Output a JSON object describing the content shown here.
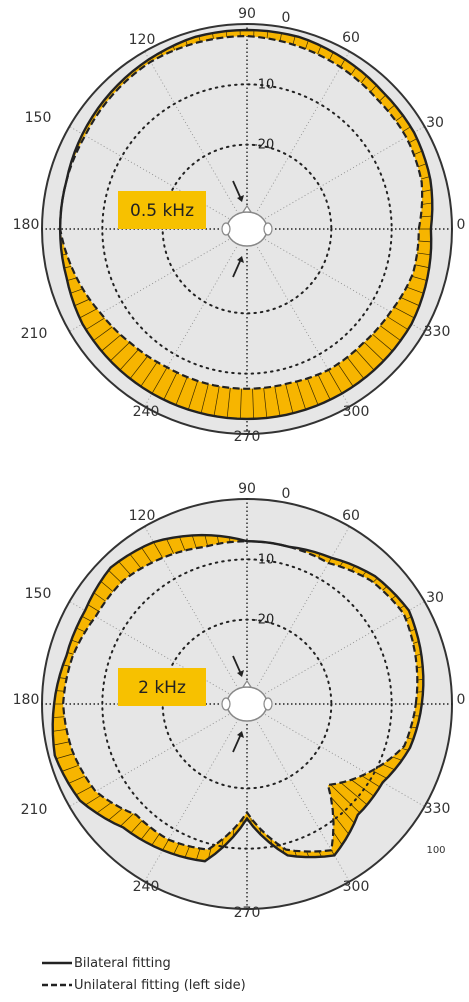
{
  "chart_data": [
    {
      "type": "polar",
      "title": "0.5 kHz",
      "angle_ticks": [
        "90",
        "0",
        "60",
        "30",
        "0",
        "330",
        "300",
        "270",
        "240",
        "210",
        "180",
        "150",
        "120"
      ],
      "radial_ticks": [
        "-10",
        "-20"
      ],
      "series": [
        {
          "name": "Bilateral fitting",
          "angles": [
            0,
            15,
            30,
            45,
            60,
            75,
            90,
            105,
            120,
            135,
            150,
            165,
            180,
            195,
            210,
            225,
            240,
            255,
            270,
            285,
            300,
            315,
            330,
            345
          ],
          "values": [
            -3.5,
            -2.5,
            -2,
            -2,
            -1.5,
            -1,
            -1,
            -1,
            -1.5,
            -2,
            -2.5,
            -3,
            -3,
            -3,
            -2.5,
            -2.5,
            -2.5,
            -2.5,
            -2.5,
            -2.5,
            -2.5,
            -2.5,
            -2.5,
            -3
          ]
        },
        {
          "name": "Unilateral fitting (left side)",
          "angles": [
            0,
            15,
            30,
            45,
            60,
            75,
            90,
            105,
            120,
            135,
            150,
            165,
            180,
            195,
            210,
            225,
            240,
            255,
            270,
            285,
            300,
            315,
            330,
            345
          ],
          "values": [
            -5.5,
            -4,
            -3.5,
            -3.5,
            -3,
            -2.5,
            -2,
            -2,
            -2,
            -2.5,
            -3,
            -3,
            -3,
            -4.5,
            -6,
            -7,
            -7.5,
            -7.5,
            -7.5,
            -7.5,
            -7,
            -7,
            -6.5,
            -5.5
          ]
        }
      ]
    },
    {
      "type": "polar",
      "title": "2 kHz",
      "angle_ticks": [
        "90",
        "0",
        "60",
        "30",
        "0",
        "330",
        "300",
        "270",
        "240",
        "210",
        "180",
        "150",
        "120"
      ],
      "radial_ticks": [
        "-10",
        "-20"
      ],
      "extra_label": "100",
      "series": [
        {
          "name": "Bilateral fitting",
          "angles": [
            0,
            15,
            30,
            45,
            60,
            75,
            90,
            105,
            120,
            135,
            150,
            165,
            180,
            195,
            210,
            225,
            240,
            255,
            270,
            285,
            300,
            315,
            330,
            345
          ],
          "values": [
            -5,
            -4,
            -3,
            -4,
            -6,
            -7,
            -7,
            -5,
            -3,
            -2,
            -3,
            -3,
            -2,
            -1,
            -2,
            -5,
            -6,
            -7,
            -15,
            -8,
            -5,
            -8,
            -8,
            -6
          ]
        },
        {
          "name": "Unilateral fitting (left side)",
          "angles": [
            0,
            15,
            30,
            45,
            60,
            75,
            90,
            105,
            120,
            135,
            150,
            165,
            180,
            195,
            210,
            225,
            240,
            255,
            270,
            285,
            300,
            315,
            330,
            345
          ],
          "values": [
            -6,
            -5,
            -4,
            -5,
            -7,
            -7,
            -7,
            -7,
            -6,
            -5,
            -5,
            -4,
            -3.5,
            -4,
            -5,
            -8,
            -8,
            -9,
            -16,
            -9,
            -6,
            -15,
            -11,
            -7
          ]
        }
      ]
    }
  ],
  "legend": {
    "bilateral": "Bilateral fitting",
    "unilateral": "Unilateral fitting  (left side)"
  },
  "colors": {
    "fill": "#f7b500",
    "plot_bg": "#e6e6e6",
    "label_bg": "#f7c100"
  }
}
